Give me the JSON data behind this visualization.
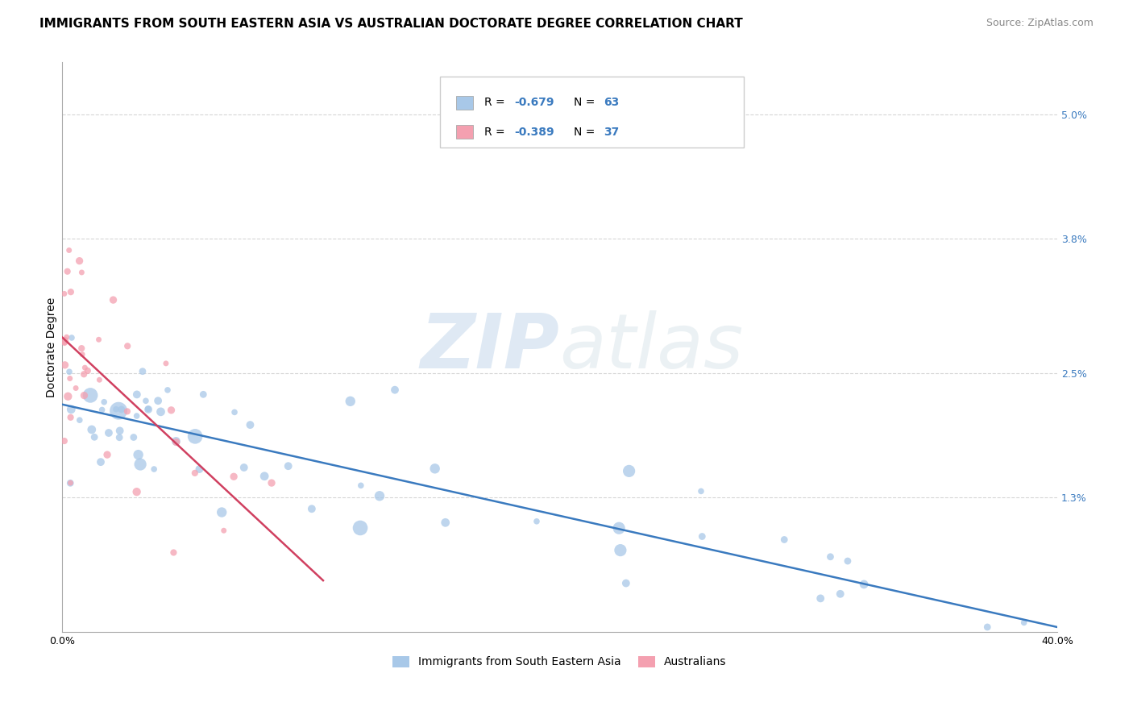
{
  "title": "IMMIGRANTS FROM SOUTH EASTERN ASIA VS AUSTRALIAN DOCTORATE DEGREE CORRELATION CHART",
  "source": "Source: ZipAtlas.com",
  "ylabel": "Doctorate Degree",
  "xlim": [
    0.0,
    40.0
  ],
  "ylim": [
    0.0,
    5.5
  ],
  "ytick_positions": [
    1.3,
    2.5,
    3.8,
    5.0
  ],
  "ytick_labels": [
    "1.3%",
    "2.5%",
    "3.8%",
    "5.0%"
  ],
  "background_color": "#ffffff",
  "watermark_text": "ZIPatlas",
  "legend_text1": "R = -0.679   N = 63",
  "legend_text2": "R = -0.389   N = 37",
  "legend_label1": "Immigrants from South Eastern Asia",
  "legend_label2": "Australians",
  "blue_scatter_color": "#a8c8e8",
  "blue_line_color": "#3a7abf",
  "pink_scatter_color": "#f4a0b0",
  "pink_line_color": "#d04060",
  "blue_trend_x": [
    0.0,
    40.0
  ],
  "blue_trend_y": [
    2.2,
    0.05
  ],
  "pink_trend_x": [
    0.0,
    10.5
  ],
  "pink_trend_y": [
    2.85,
    0.5
  ],
  "grid_color": "#cccccc",
  "title_fontsize": 11,
  "axis_fontsize": 10,
  "tick_fontsize": 9,
  "legend_color": "#3a7abf"
}
